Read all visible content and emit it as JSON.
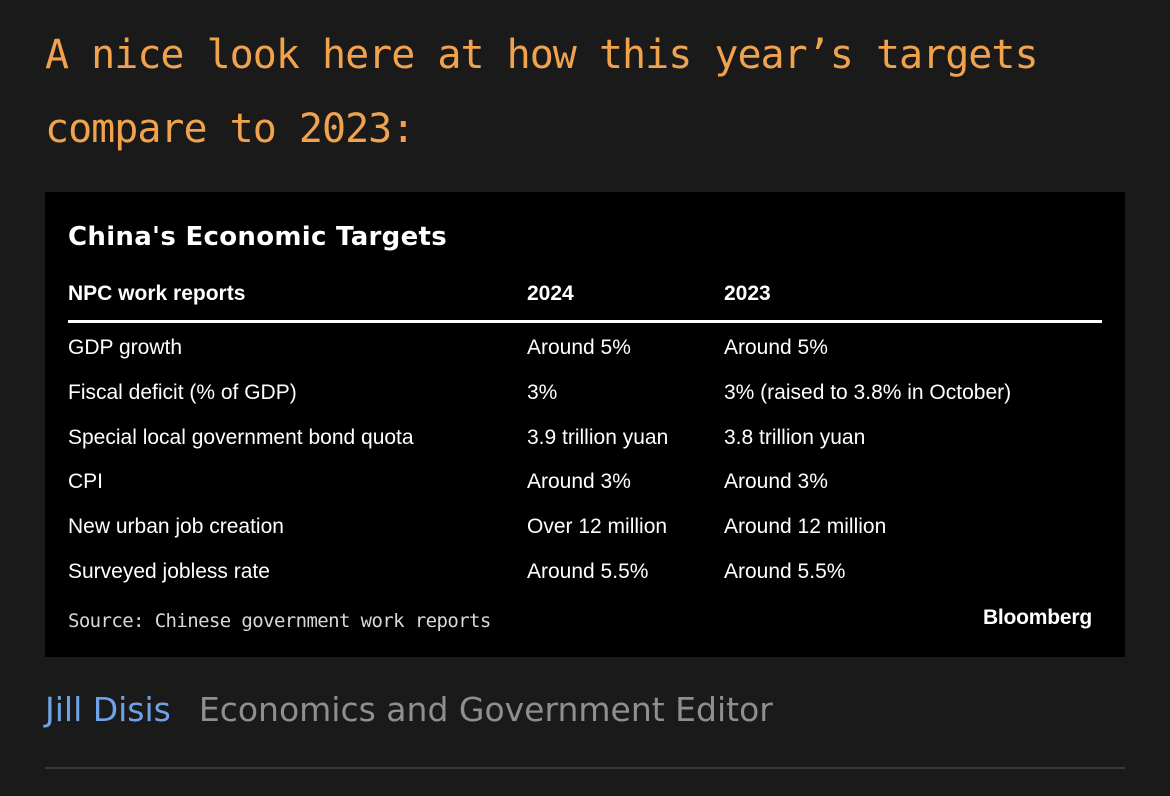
{
  "headline": "A nice look here at how this year’s targets compare to 2023:",
  "card": {
    "title": "China's Economic Targets",
    "headers": [
      "NPC work reports",
      "2024",
      "2023"
    ],
    "rows": [
      [
        "GDP growth",
        "Around 5%",
        "Around 5%"
      ],
      [
        "Fiscal deficit (% of GDP)",
        "3%",
        "3% (raised to 3.8% in October)"
      ],
      [
        "Special local government bond quota",
        "3.9 trillion yuan",
        "3.8 trillion yuan"
      ],
      [
        "CPI",
        "Around 3%",
        "Around 3%"
      ],
      [
        "New urban job creation",
        "Over 12 million",
        "Around 12 million"
      ],
      [
        "Surveyed jobless rate",
        "Around 5.5%",
        "Around 5.5%"
      ]
    ],
    "source": "Source: Chinese government work reports",
    "brand": "Bloomberg"
  },
  "byline": {
    "name": "Jill Disis",
    "role": "Economics and Government Editor"
  },
  "colors": {
    "headline": "#f0a24d",
    "author_link": "#6fa3e8",
    "background": "#1a1a1a",
    "card": "#000000"
  }
}
